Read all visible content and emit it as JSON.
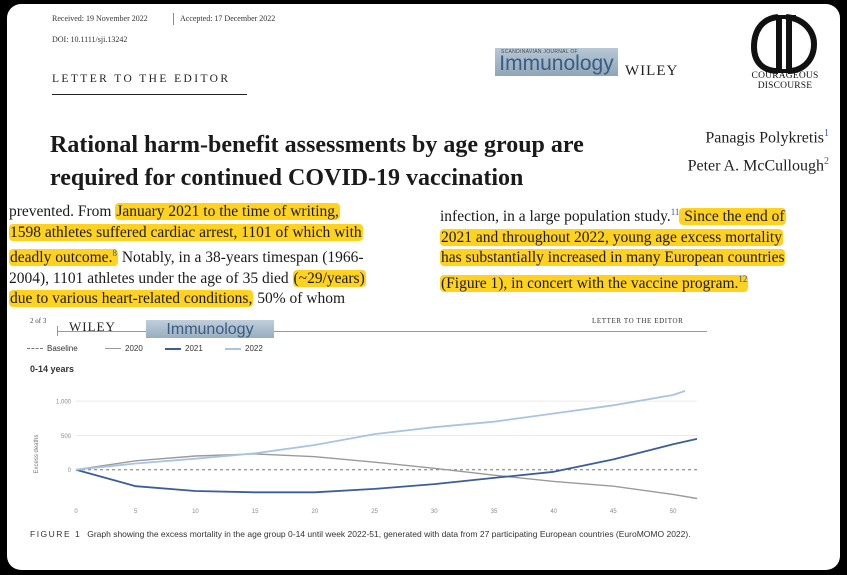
{
  "header": {
    "received": "Received: 19 November 2022",
    "accepted": "Accepted: 17 December 2022",
    "doi": "DOI: 10.1111/sji.13242",
    "section": "LETTER TO THE EDITOR",
    "journal_kicker": "SCANDINAVIAN JOURNAL OF",
    "journal": "Immunology",
    "publisher": "WILEY"
  },
  "branding": {
    "line1": "COURAGEOUS",
    "line2": "DISCOURSE"
  },
  "article": {
    "title_line1": "Rational harm-benefit assessments by age group are",
    "title_line2": "required for continued COVID-19 vaccination",
    "authors": [
      {
        "name": "Panagis Polykretis",
        "ref": "1"
      },
      {
        "name": "Peter A. McCullough",
        "ref": "2"
      }
    ]
  },
  "left_column": {
    "l1_a": "prevented. From ",
    "l1_hl": "January 2021 to the time of writing,",
    "l2_hl": "1598 athletes suffered cardiac arrest, 1101 of which with",
    "l3_hl": "deadly outcome.",
    "l3_ref": "8",
    "l3_b": " Notably, in a 38-years timespan (1966-",
    "l4_a": "2004), 1101 athletes under the age of 35 died ",
    "l4_hl": "(~29/years)",
    "l5_hl": "due to various heart-related conditions,",
    "l5_b": " 50% of whom"
  },
  "right_column": {
    "l1_a": "infection, in a large population study.",
    "l1_ref": "11",
    "l1_hl": " Since the end of",
    "l2_hl": "2021 and throughout 2022, young age excess mortality",
    "l3_hl": "has substantially increased in many European countries",
    "l4_hl": "(Figure 1), in concert with the vaccine program.",
    "l4_ref": "12"
  },
  "sub_page": {
    "page_label": "2 of 3",
    "publisher": "WILEY",
    "journal": "Immunology",
    "section": "LETTER TO THE EDITOR"
  },
  "figure": {
    "panel_title": "0-14 years",
    "caption_label": "FIGURE 1",
    "caption_text": "Graph showing the excess mortality in the age group 0-14 until week 2022-51, generated with data from 27 participating European countries (EuroMOMO 2022).",
    "colors": {
      "baseline": "#777777",
      "2020": "#9a9a9a",
      "2021": "#3a5f98",
      "2022": "#a8c4e2"
    }
  },
  "chart_data": {
    "type": "line",
    "title": "0-14 years",
    "xlabel": "",
    "ylabel": "Excess deaths",
    "xlim": [
      0,
      52
    ],
    "ylim": [
      -500,
      1250
    ],
    "x_ticks": [
      0,
      5,
      10,
      15,
      20,
      25,
      30,
      35,
      40,
      45,
      50
    ],
    "y_ticks": [
      0,
      500,
      1000
    ],
    "y_tick_labels": [
      "0",
      "500",
      "1,000"
    ],
    "legend_position": "top-left",
    "series": [
      {
        "name": "Baseline",
        "style": "dashed",
        "x": [
          0,
          52
        ],
        "y": [
          0,
          0
        ]
      },
      {
        "name": "2020",
        "x": [
          0,
          5,
          10,
          15,
          20,
          25,
          30,
          35,
          40,
          45,
          50,
          52
        ],
        "y": [
          0,
          130,
          200,
          230,
          190,
          110,
          20,
          -80,
          -170,
          -240,
          -360,
          -420
        ]
      },
      {
        "name": "2021",
        "x": [
          0,
          5,
          10,
          15,
          20,
          25,
          30,
          35,
          40,
          45,
          50,
          52
        ],
        "y": [
          0,
          -240,
          -310,
          -330,
          -330,
          -280,
          -210,
          -120,
          -30,
          150,
          370,
          450
        ]
      },
      {
        "name": "2022",
        "x": [
          0,
          5,
          10,
          15,
          20,
          25,
          30,
          35,
          40,
          45,
          50,
          51
        ],
        "y": [
          0,
          90,
          160,
          240,
          360,
          520,
          620,
          700,
          820,
          940,
          1090,
          1150
        ]
      }
    ]
  }
}
